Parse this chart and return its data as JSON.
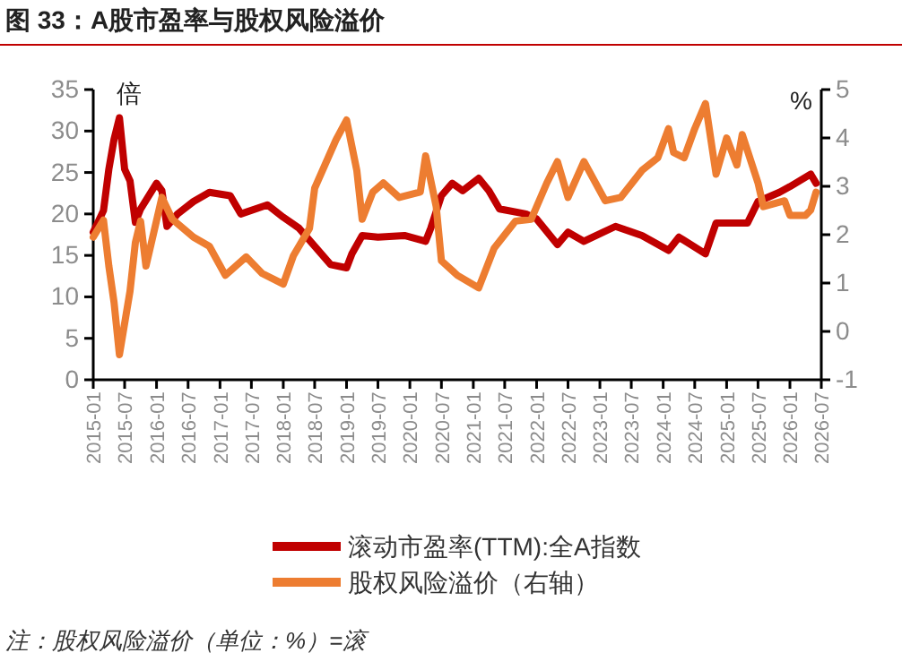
{
  "chart_data": {
    "type": "line",
    "title": "图 33：A股市盈率与股权风险溢价",
    "ylabel": "倍",
    "y2label": "%",
    "xlim": [
      "2015-01",
      "2026-07"
    ],
    "xticks": [
      {
        "value": "2015-01",
        "label": "2015-01"
      },
      {
        "value": "2015-07",
        "label": "2015-07"
      },
      {
        "value": "2016-01",
        "label": "2016-01"
      },
      {
        "value": "2016-07",
        "label": "2016-07"
      },
      {
        "value": "2017-01",
        "label": "2017-01"
      },
      {
        "value": "2017-07",
        "label": "2017-07"
      },
      {
        "value": "2018-01",
        "label": "2018-01"
      },
      {
        "value": "2018-07",
        "label": "2018-07"
      },
      {
        "value": "2019-01",
        "label": "2019-01"
      },
      {
        "value": "2019-07",
        "label": "2019-07"
      },
      {
        "value": "2020-01",
        "label": "2020-01"
      },
      {
        "value": "2020-07",
        "label": "2020-07"
      },
      {
        "value": "2021-01",
        "label": "2021-01"
      },
      {
        "value": "2021-07",
        "label": "2021-07"
      },
      {
        "value": "2022-01",
        "label": "2022-01"
      },
      {
        "value": "2022-07",
        "label": "2022-07"
      },
      {
        "value": "2023-01",
        "label": "2023-01"
      },
      {
        "value": "2023-07",
        "label": "2023-07"
      },
      {
        "value": "2024-01",
        "label": "2024-01"
      },
      {
        "value": "2024-07",
        "label": "2024-07"
      },
      {
        "value": "2025-01",
        "label": "2025-01"
      },
      {
        "value": "2025-07",
        "label": "2025-07"
      },
      {
        "value": "2026-01",
        "label": "2026-01"
      },
      {
        "value": "2026-07",
        "label": "2026-07"
      }
    ],
    "ylim": [
      0,
      35
    ],
    "yticks": [
      0,
      5,
      10,
      15,
      20,
      25,
      30,
      35
    ],
    "y2lim": [
      -1,
      5
    ],
    "y2ticks": [
      -1,
      0,
      1,
      2,
      3,
      4,
      5
    ],
    "grid": false,
    "legend": "bottom",
    "line_style": "solid",
    "marker": "none",
    "annotations": [
      "注：股权风险溢价（单位：%）=滚"
    ],
    "series": [
      {
        "name": "滚动市盈率(TTM):全A指数",
        "color": "#c00000",
        "x": [
          "2015-01",
          "2015-03",
          "2015-04",
          "2015-05",
          "2015-06",
          "2015-07",
          "2015-08",
          "2015-09",
          "2015-10",
          "2016-01",
          "2016-02",
          "2016-03",
          "2016-05",
          "2016-08",
          "2016-11",
          "2017-03",
          "2017-05",
          "2017-10",
          "2018-01",
          "2018-04",
          "2018-07",
          "2018-10",
          "2019-01",
          "2019-02",
          "2019-04",
          "2019-07",
          "2019-12",
          "2020-04",
          "2020-05",
          "2020-07",
          "2020-09",
          "2020-11",
          "2021-02",
          "2021-04",
          "2021-06",
          "2021-11",
          "2022-01",
          "2022-05",
          "2022-07",
          "2022-10",
          "2023-04",
          "2023-09",
          "2024-02",
          "2024-04",
          "2024-09",
          "2024-11",
          "2025-05",
          "2025-07",
          "2025-11",
          "2026-01",
          "2026-05",
          "2026-06"
        ],
        "values": [
          17.8,
          20.4,
          25.4,
          29,
          31.6,
          25.4,
          24,
          19,
          20.6,
          23.7,
          22.8,
          18.5,
          20,
          21.5,
          22.6,
          22.2,
          20,
          21.1,
          19.6,
          18.3,
          16.1,
          13.9,
          13.5,
          15.2,
          17.4,
          17.2,
          17.4,
          16.7,
          18.3,
          22.2,
          23.7,
          22.8,
          24.3,
          22.8,
          20.6,
          20,
          19.4,
          16.3,
          17.8,
          16.7,
          18.5,
          17.4,
          15.6,
          17.2,
          15.2,
          18.9,
          18.9,
          21.5,
          22.6,
          23.3,
          24.8,
          23.7
        ]
      },
      {
        "name": "股权风险溢价（右轴）",
        "color": "#ed7d31",
        "axis": "y2",
        "x": [
          "2015-01",
          "2015-03",
          "2015-04",
          "2015-05",
          "2015-06",
          "2015-08",
          "2015-09",
          "2015-10",
          "2015-11",
          "2016-02",
          "2016-04",
          "2016-08",
          "2016-11",
          "2017-02",
          "2017-06",
          "2017-09",
          "2018-01",
          "2018-03",
          "2018-06",
          "2018-07",
          "2018-11",
          "2019-01",
          "2019-03",
          "2019-04",
          "2019-06",
          "2019-08",
          "2019-11",
          "2020-03",
          "2020-04",
          "2020-06",
          "2020-07",
          "2020-10",
          "2021-02",
          "2021-05",
          "2021-09",
          "2021-12",
          "2022-03",
          "2022-05",
          "2022-07",
          "2022-10",
          "2023-02",
          "2023-05",
          "2023-09",
          "2023-12",
          "2024-02",
          "2024-03",
          "2024-05",
          "2024-07",
          "2024-09",
          "2024-11",
          "2025-01",
          "2025-03",
          "2025-04",
          "2025-07",
          "2025-08",
          "2025-12",
          "2026-01",
          "2026-04",
          "2026-05",
          "2026-06"
        ],
        "values": [
          1.95,
          2.3,
          1.35,
          0.6,
          -0.48,
          0.83,
          1.84,
          2.28,
          1.35,
          2.77,
          2.32,
          1.95,
          1.76,
          1.16,
          1.54,
          1.2,
          0.98,
          1.57,
          2.13,
          2.96,
          3.96,
          4.37,
          3.33,
          2.32,
          2.88,
          3.07,
          2.77,
          2.88,
          3.63,
          2.58,
          1.46,
          1.16,
          0.9,
          1.72,
          2.28,
          2.32,
          3.07,
          3.51,
          2.77,
          3.51,
          2.7,
          2.77,
          3.33,
          3.59,
          4.19,
          3.7,
          3.59,
          4.19,
          4.71,
          3.25,
          4,
          3.44,
          4.07,
          3.07,
          2.58,
          2.7,
          2.4,
          2.4,
          2.51,
          2.88
        ]
      }
    ]
  }
}
